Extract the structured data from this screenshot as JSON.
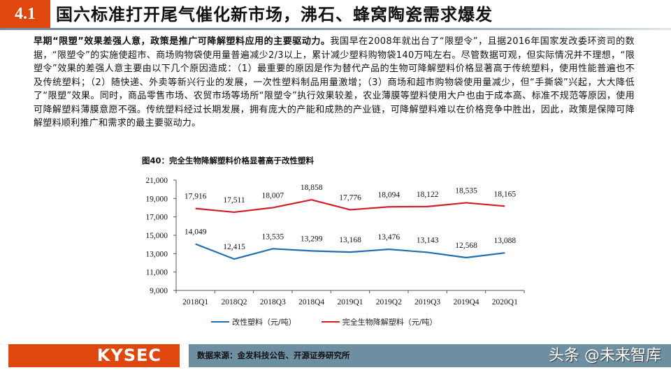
{
  "header": {
    "section_number": "4.1",
    "title": "国六标准打开尾气催化新市场，沸石、蜂窝陶瓷需求爆发"
  },
  "body": {
    "lead": "早期“限塑”效果差强人意，政策是推广可降解塑料应用的主要驱动力。",
    "text": "我国早在2008年就出台了“限塑令”，且据2016年国家发改委环资司的数据，“限塑令”的实施使超市、商场购物袋使用量普遍减少2/3以上，累计减少塑料购物袋140万吨左右。尽管数据可观，但实际情况并不理想，“限塑令”效果的差强人意主要由以下几个原因造成：（1）最重要的原因是作为替代产品的生物可降解塑料价格显著高于传统塑料，使用性能普遍也不及传统塑料；（2）随快递、外卖等新兴行业的发展，一次性塑料制品用量激增；（3）商场和超市购物袋使用量减少，但“手撕袋”兴起，大大降低了“限塑”效果。同时，商品零售市场、农贸市场等场所“限塑令”执行效果较差，农业薄膜等塑料使用大户也由于成本高、标准不规范等原因，使用可降解塑料薄膜意愿不强。传统塑料经过长期发展，拥有庞大的产能和成熟的产业链，可降解塑料难以在价格竞争中胜出，因此，政策是保障可降解塑料顺利推广和需求的最主要驱动力。"
  },
  "figure": {
    "title": "图40：完全生物降解塑料价格显著高于改性塑料"
  },
  "chart_data": {
    "type": "line",
    "title": "图40：完全生物降解塑料价格显著高于改性塑料",
    "categories": [
      "2018Q1",
      "2018Q2",
      "2018Q3",
      "2018Q4",
      "2019Q1",
      "2019Q2",
      "2019Q3",
      "2019Q4",
      "2020Q1"
    ],
    "series": [
      {
        "name": "改性塑料（元/吨）",
        "color": "#1f6fb0",
        "values": [
          14049,
          12415,
          13535,
          13299,
          13168,
          13476,
          13143,
          12568,
          13088
        ],
        "labels": [
          "14,049",
          "12,415",
          "13,535",
          "13,299",
          "13,168",
          "13,476",
          "13,143",
          "12,568",
          "13,088"
        ]
      },
      {
        "name": "完全生物降解塑料（元/吨）",
        "color": "#d11f2a",
        "values": [
          17916,
          17511,
          18007,
          18858,
          17776,
          18094,
          18122,
          18535,
          18165
        ],
        "labels": [
          "17,916",
          "17,511",
          "18,007",
          "18,858",
          "17,776",
          "18,094",
          "18,122",
          "18,535",
          "18,165"
        ]
      }
    ],
    "xlabel": "",
    "ylabel": "",
    "ylim": [
      9000,
      21000
    ],
    "yticks": [
      "21,000",
      "19,000",
      "17,000",
      "15,000",
      "13,000",
      "11,000",
      "9,000"
    ],
    "grid": false,
    "legend_position": "bottom"
  },
  "legend": {
    "items": [
      {
        "label": "改性塑料（元/吨）",
        "color": "#1f6fb0"
      },
      {
        "label": "完全生物降解塑料（元/吨）",
        "color": "#d11f2a"
      }
    ]
  },
  "footer": {
    "logo": "KYSEC",
    "source": "数据来源：金发科技公告、开源证券研究所",
    "watermark": "头条 @未来智库"
  }
}
